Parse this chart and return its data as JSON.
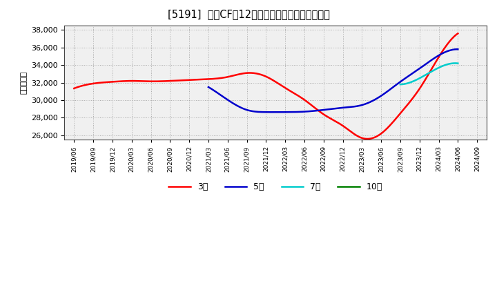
{
  "title": "[5191]  営業CFの12か月移動合計の平均値の推移",
  "ylabel": "（百万円）",
  "background_color": "#ffffff",
  "plot_bg_color": "#f0f0f0",
  "grid_color": "#aaaaaa",
  "ylim": [
    25500,
    38500
  ],
  "ytick_min": 26000,
  "ytick_max": 38000,
  "ytick_step": 2000,
  "x_labels": [
    "2019/06",
    "2019/09",
    "2019/12",
    "2020/03",
    "2020/06",
    "2020/09",
    "2020/12",
    "2021/03",
    "2021/06",
    "2021/09",
    "2021/12",
    "2022/03",
    "2022/06",
    "2022/09",
    "2022/12",
    "2023/03",
    "2023/06",
    "2023/09",
    "2023/12",
    "2024/03",
    "2024/06",
    "2024/09"
  ],
  "series_3y": {
    "label": "3年",
    "color": "#ff0000",
    "x": [
      0,
      1,
      2,
      3,
      4,
      5,
      6,
      7,
      8,
      9,
      10,
      11,
      12,
      13,
      14,
      15,
      16,
      17,
      18,
      19,
      20
    ],
    "y": [
      31350,
      31900,
      32100,
      32200,
      32150,
      32200,
      32300,
      32400,
      32650,
      33100,
      32700,
      31400,
      30050,
      28400,
      27100,
      25700,
      26200,
      28500,
      31300,
      34900,
      37600
    ]
  },
  "series_5y": {
    "label": "5年",
    "color": "#0000cc",
    "x": [
      7,
      8,
      9,
      10,
      11,
      12,
      13,
      14,
      15,
      16,
      17,
      18,
      19,
      20
    ],
    "y": [
      31500,
      30050,
      28900,
      28650,
      28650,
      28700,
      28900,
      29150,
      29450,
      30500,
      32100,
      33600,
      35100,
      35800
    ]
  },
  "series_7y": {
    "label": "7年",
    "color": "#00cccc",
    "x": [
      17,
      18,
      19,
      20
    ],
    "y": [
      31800,
      32500,
      33700,
      34200
    ]
  },
  "series_10y": {
    "label": "10年",
    "color": "#008000",
    "x": [],
    "y": []
  }
}
